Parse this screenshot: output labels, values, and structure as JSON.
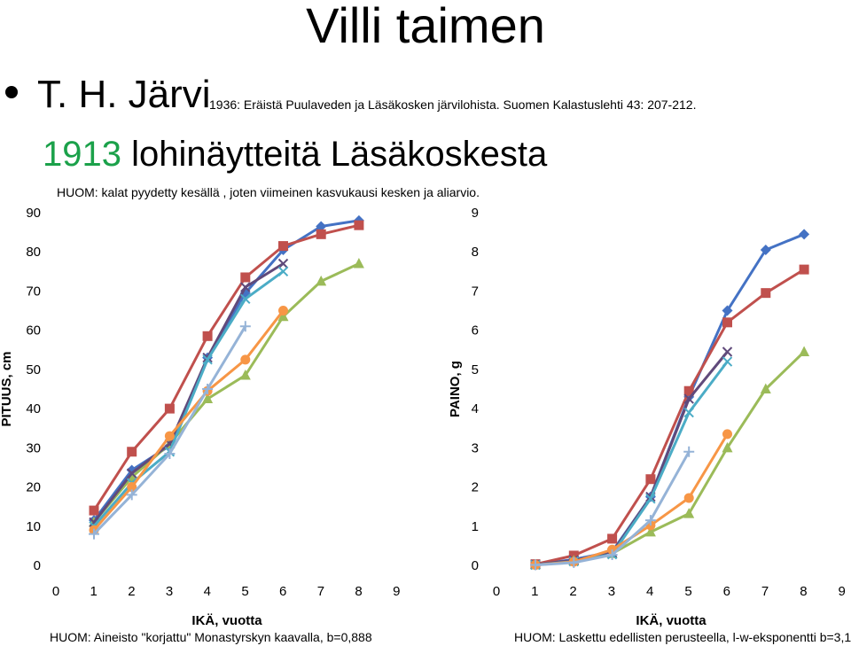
{
  "header": {
    "title": "Villi taimen",
    "author": "T. H. Järvi",
    "citation": "1936: Eräistä Puulaveden ja Läsäkosken järvilohista. Suomen Kalastuslehti 43: 207-212.",
    "subtitle_year": "1913",
    "subtitle_rest": " lohinäytteitä Läsäkoskesta",
    "note": "HUOM: kalat pyydetty kesällä , joten viimeinen kasvukausi kesken ja aliarvio."
  },
  "notes": {
    "left": "HUOM: Aineisto \"korjattu\" Monastyrskyn kaavalla, b=0,888",
    "right": "HUOM: Laskettu edellisten perusteella, l-w-eksponentti b=3,1"
  },
  "chart_data": [
    {
      "type": "line",
      "xlabel": "IKÄ, vuotta",
      "ylabel": "PITUUS, cm",
      "xlim": [
        0,
        9
      ],
      "ylim": [
        0,
        90
      ],
      "xticks": [
        "0",
        "1",
        "2",
        "3",
        "4",
        "5",
        "6",
        "7",
        "8",
        "9"
      ],
      "yticks": [
        "0",
        "10",
        "20",
        "30",
        "40",
        "50",
        "60",
        "70",
        "80",
        "90"
      ],
      "grid": false,
      "series": [
        {
          "color": "#4472c4",
          "marker": "diamond",
          "x": [
            1,
            2,
            3,
            4,
            5,
            6,
            7,
            8
          ],
          "y": [
            11.5,
            24.3,
            30.5,
            53,
            69.5,
            80.5,
            86.5,
            88
          ]
        },
        {
          "color": "#c0504d",
          "marker": "square",
          "x": [
            1,
            2,
            3,
            4,
            5,
            6,
            7,
            8
          ],
          "y": [
            14,
            29,
            40,
            58.5,
            73.5,
            81.5,
            84.5,
            86.8
          ]
        },
        {
          "color": "#9bbb59",
          "marker": "triangle",
          "x": [
            1,
            2,
            3,
            4,
            5,
            6,
            7,
            8
          ],
          "y": [
            11,
            22.5,
            31,
            42.5,
            48.5,
            63.5,
            72.5,
            77
          ]
        },
        {
          "color": "#604a7b",
          "marker": "x",
          "x": [
            1,
            2,
            3,
            4,
            5,
            6
          ],
          "y": [
            11,
            23.5,
            31,
            53,
            71,
            77
          ]
        },
        {
          "color": "#4bacc6",
          "marker": "x",
          "x": [
            1,
            2,
            3,
            4,
            5,
            6
          ],
          "y": [
            10,
            21,
            29,
            52.5,
            68,
            75
          ]
        },
        {
          "color": "#f79646",
          "marker": "circle",
          "x": [
            1,
            2,
            3,
            4,
            5,
            6
          ],
          "y": [
            9,
            20,
            33,
            44.5,
            52.5,
            65
          ]
        },
        {
          "color": "#95b3d7",
          "marker": "plus",
          "x": [
            1,
            2,
            3,
            4,
            5
          ],
          "y": [
            8,
            18,
            28.5,
            45,
            61
          ]
        }
      ]
    },
    {
      "type": "line",
      "xlabel": "IKÄ, vuotta",
      "ylabel": "PAINO, g",
      "xlim": [
        0,
        9
      ],
      "ylim": [
        0,
        9
      ],
      "xticks": [
        "0",
        "1",
        "2",
        "3",
        "4",
        "5",
        "6",
        "7",
        "8",
        "9"
      ],
      "yticks": [
        "0",
        "1",
        "2",
        "3",
        "4",
        "5",
        "6",
        "7",
        "8",
        "9"
      ],
      "grid": false,
      "series": [
        {
          "color": "#4472c4",
          "marker": "diamond",
          "x": [
            1,
            2,
            3,
            4,
            5,
            6,
            7,
            8
          ],
          "y": [
            0.02,
            0.15,
            0.35,
            1.75,
            4.3,
            6.5,
            8.05,
            8.45
          ]
        },
        {
          "color": "#c0504d",
          "marker": "square",
          "x": [
            1,
            2,
            3,
            4,
            5,
            6,
            7,
            8
          ],
          "y": [
            0.03,
            0.25,
            0.68,
            2.2,
            4.45,
            6.2,
            6.95,
            7.55
          ]
        },
        {
          "color": "#9bbb59",
          "marker": "triangle",
          "x": [
            1,
            2,
            3,
            4,
            5,
            6,
            7,
            8
          ],
          "y": [
            0.02,
            0.12,
            0.3,
            0.85,
            1.32,
            3.0,
            4.5,
            5.45
          ]
        },
        {
          "color": "#604a7b",
          "marker": "x",
          "x": [
            1,
            2,
            3,
            4,
            5,
            6
          ],
          "y": [
            0.02,
            0.13,
            0.32,
            1.75,
            4.25,
            5.45
          ]
        },
        {
          "color": "#4bacc6",
          "marker": "x",
          "x": [
            1,
            2,
            3,
            4,
            5,
            6
          ],
          "y": [
            0.01,
            0.1,
            0.28,
            1.7,
            3.9,
            5.2
          ]
        },
        {
          "color": "#f79646",
          "marker": "circle",
          "x": [
            1,
            2,
            3,
            4,
            5,
            6
          ],
          "y": [
            0.01,
            0.09,
            0.4,
            1.02,
            1.72,
            3.35
          ]
        },
        {
          "color": "#95b3d7",
          "marker": "plus",
          "x": [
            1,
            2,
            3,
            4,
            5
          ],
          "y": [
            0.01,
            0.07,
            0.27,
            1.15,
            2.9
          ]
        }
      ]
    }
  ]
}
